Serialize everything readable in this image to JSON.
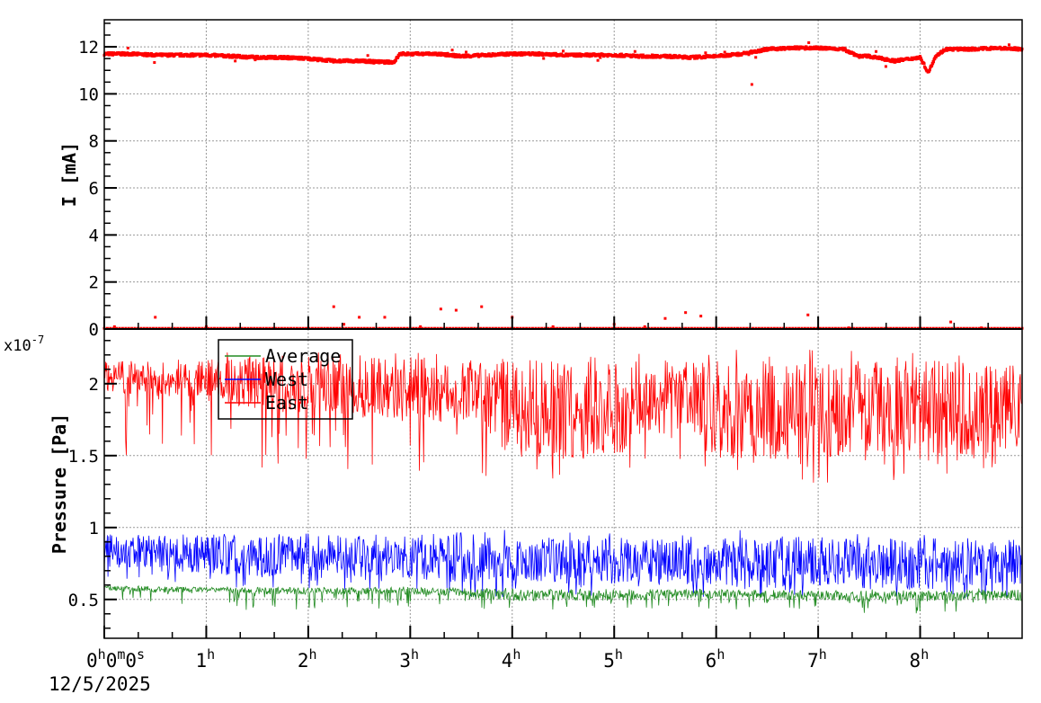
{
  "chart_data": [
    {
      "type": "scatter",
      "ylabel": "I [mA]",
      "xlim_hours": [
        0,
        9
      ],
      "ylim": [
        0,
        13.15
      ],
      "yticks": [
        "0",
        "2",
        "4",
        "6",
        "8",
        "10",
        "12"
      ],
      "grid": true,
      "color": "#ff0000",
      "series": [
        {
          "x": [
            0,
            0.25,
            0.5,
            0.75,
            1,
            1.25,
            1.5,
            1.75,
            2,
            2.25,
            2.5,
            2.75,
            2.84,
            2.9,
            3,
            3.25,
            3.5,
            3.75,
            4,
            4.25,
            4.5,
            4.75,
            5,
            5.25,
            5.5,
            5.75,
            6,
            6.25,
            6.5,
            6.75,
            7,
            7.25,
            7.4,
            7.5,
            7.75,
            8,
            8.08,
            8.15,
            8.25,
            8.5,
            8.75,
            9
          ],
          "values": [
            11.7,
            11.7,
            11.65,
            11.65,
            11.65,
            11.6,
            11.55,
            11.55,
            11.5,
            11.4,
            11.4,
            11.35,
            11.35,
            11.7,
            11.7,
            11.7,
            11.6,
            11.65,
            11.7,
            11.7,
            11.65,
            11.65,
            11.65,
            11.6,
            11.6,
            11.55,
            11.6,
            11.7,
            11.9,
            11.95,
            11.95,
            11.9,
            11.6,
            11.6,
            11.4,
            11.55,
            10.9,
            11.6,
            11.9,
            11.9,
            11.95,
            11.9
          ]
        },
        {
          "x": [
            0.1,
            0.5,
            1.0,
            2.25,
            2.35,
            2.5,
            2.75,
            3.1,
            3.3,
            3.45,
            3.7,
            4.0,
            4.4,
            5.0,
            5.3,
            5.5,
            5.7,
            5.85,
            6.35,
            6.9,
            7.3,
            8.3,
            8.6
          ],
          "values": [
            0.1,
            0.5,
            0.1,
            0.95,
            0.2,
            0.5,
            0.5,
            0.1,
            0.85,
            0.8,
            0.95,
            0.5,
            0.1,
            0.2,
            0.1,
            0.45,
            0.7,
            0.55,
            10.4,
            0.6,
            0.05,
            0.3,
            0.05
          ]
        }
      ]
    },
    {
      "type": "line",
      "ylabel": "Pressure [Pa]",
      "y_multiplier": "x10",
      "y_exponent": "-7",
      "ylim": [
        0.23,
        2.38
      ],
      "yticks": [
        "0.5",
        "1",
        "1.5",
        "2"
      ],
      "xlim_hours": [
        0,
        9
      ],
      "xticks": [
        "0",
        "1",
        "2",
        "3",
        "4",
        "5",
        "6",
        "7",
        "8"
      ],
      "x_origin_label": {
        "h": "0",
        "m": "0",
        "s": "0"
      },
      "x_origin_date": "12/5/2025",
      "x_unit": "h",
      "grid": true,
      "legend": {
        "placement": "top-left",
        "entries": [
          "Average",
          "West",
          "East"
        ]
      },
      "x": [
        0,
        0.5,
        1,
        1.5,
        2,
        2.5,
        3,
        3.5,
        4,
        4.5,
        5,
        5.5,
        6,
        6.5,
        7,
        7.5,
        8,
        8.5,
        9
      ],
      "series": [
        {
          "name": "Average",
          "color": "#228b22",
          "mean": [
            0.58,
            0.57,
            0.57,
            0.56,
            0.56,
            0.56,
            0.56,
            0.55,
            0.53,
            0.53,
            0.53,
            0.54,
            0.54,
            0.53,
            0.53,
            0.52,
            0.52,
            0.53,
            0.53
          ],
          "min": [
            0.48,
            0.48,
            0.45,
            0.42,
            0.42,
            0.43,
            0.43,
            0.42,
            0.42,
            0.42,
            0.43,
            0.44,
            0.43,
            0.42,
            0.42,
            0.4,
            0.4,
            0.42,
            0.44
          ],
          "max": [
            0.6,
            0.6,
            0.59,
            0.59,
            0.59,
            0.59,
            0.59,
            0.59,
            0.58,
            0.58,
            0.58,
            0.58,
            0.58,
            0.57,
            0.57,
            0.57,
            0.57,
            0.58,
            0.58
          ]
        },
        {
          "name": "West",
          "color": "#0000ff",
          "mean": [
            0.84,
            0.82,
            0.82,
            0.8,
            0.8,
            0.8,
            0.8,
            0.79,
            0.77,
            0.77,
            0.77,
            0.77,
            0.76,
            0.76,
            0.76,
            0.75,
            0.75,
            0.76,
            0.76
          ],
          "min": [
            0.62,
            0.6,
            0.6,
            0.55,
            0.55,
            0.55,
            0.55,
            0.52,
            0.5,
            0.52,
            0.52,
            0.52,
            0.5,
            0.5,
            0.5,
            0.48,
            0.48,
            0.5,
            0.5
          ],
          "max": [
            0.98,
            0.98,
            0.99,
            0.99,
            0.99,
            0.99,
            0.99,
            1.01,
            0.98,
            0.97,
            0.97,
            0.97,
            0.98,
            0.99,
            0.98,
            0.98,
            0.98,
            0.97,
            0.95
          ]
        },
        {
          "name": "East",
          "color": "#ff0000",
          "mean": [
            2.05,
            2.04,
            2.04,
            2.0,
            2.0,
            1.98,
            1.98,
            1.95,
            1.82,
            1.82,
            1.82,
            1.95,
            1.82,
            1.82,
            1.82,
            1.8,
            1.8,
            1.82,
            1.85
          ],
          "min": [
            1.48,
            1.45,
            1.45,
            1.4,
            1.4,
            1.4,
            1.4,
            1.35,
            1.3,
            1.35,
            1.38,
            1.4,
            1.35,
            1.35,
            1.3,
            1.3,
            1.32,
            1.38,
            1.42
          ],
          "max": [
            2.18,
            2.2,
            2.2,
            2.25,
            2.25,
            2.25,
            2.25,
            2.25,
            2.25,
            2.25,
            2.25,
            2.2,
            2.25,
            2.25,
            2.25,
            2.25,
            2.25,
            2.25,
            2.2
          ]
        }
      ]
    }
  ]
}
